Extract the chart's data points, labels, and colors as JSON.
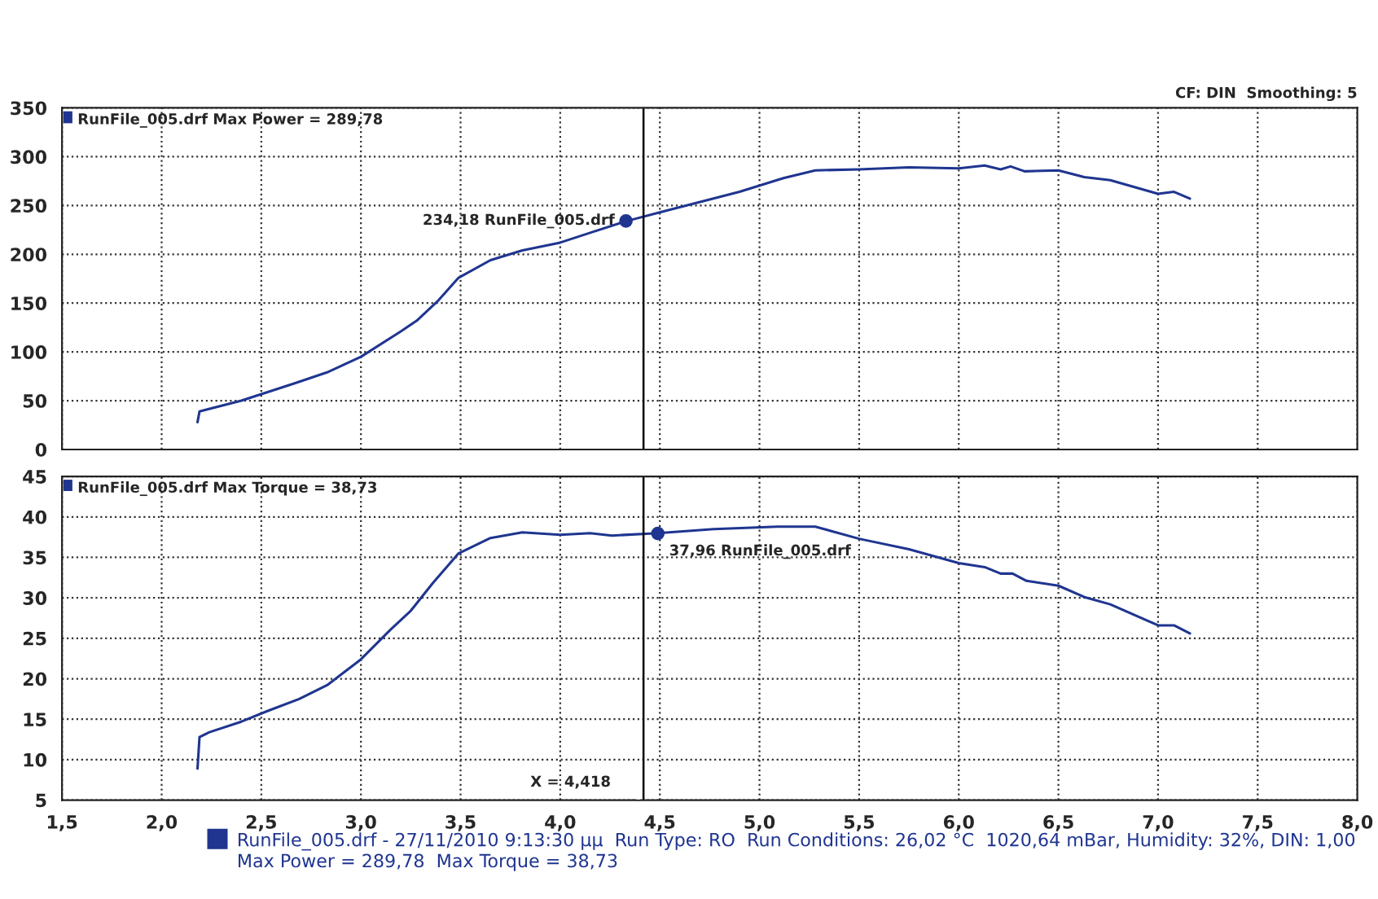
{
  "chart_data": [
    {
      "type": "line",
      "xlim": [
        1.5,
        8.0
      ],
      "xticks": [
        {
          "value": 1.5,
          "label": null
        },
        {
          "value": 2.0,
          "label": null
        },
        {
          "value": 2.5,
          "label": null
        },
        {
          "value": 3.0,
          "label": null
        },
        {
          "value": 3.5,
          "label": null
        },
        {
          "value": 4.0,
          "label": null
        },
        {
          "value": 4.5,
          "label": null
        },
        {
          "value": 5.0,
          "label": null
        },
        {
          "value": 5.5,
          "label": null
        },
        {
          "value": 6.0,
          "label": null
        },
        {
          "value": 6.5,
          "label": null
        },
        {
          "value": 7.0,
          "label": null
        },
        {
          "value": 7.5,
          "label": null
        },
        {
          "value": 8.0,
          "label": null
        }
      ],
      "ylim": [
        0,
        350
      ],
      "yticks": [
        0,
        50,
        100,
        150,
        200,
        250,
        300,
        350
      ],
      "tick_labels": "y",
      "grid": true,
      "series": [
        {
          "color": "#1f3590",
          "x": [
            2.18,
            2.19,
            2.4,
            2.67,
            2.83,
            3.0,
            3.2,
            3.28,
            3.39,
            3.49,
            3.65,
            3.81,
            4.0,
            4.15,
            4.33,
            4.37,
            4.5,
            4.69,
            4.9,
            5.12,
            5.28,
            5.5,
            5.75,
            6.0,
            6.13,
            6.21,
            6.26,
            6.33,
            6.5,
            6.63,
            6.76,
            7.0,
            7.08,
            7.16
          ],
          "values": [
            28,
            39,
            50,
            68,
            79,
            95,
            121,
            132,
            153,
            176,
            194,
            204,
            212,
            222,
            234,
            236,
            243,
            253,
            264,
            278,
            286,
            287,
            289,
            288,
            291,
            287,
            290,
            285,
            286,
            279,
            276,
            262,
            264,
            257
          ]
        }
      ],
      "ref_lines": [
        {
          "axis": "x",
          "value": 4.418,
          "color": "#000000"
        }
      ],
      "annotations": [
        "RunFile_005.drf Max Power = 289,78",
        "CF: DIN  Smoothing: 5",
        {
          "text": "234,18 RunFile_005.drf",
          "x": 4.33,
          "y": 234.18
        }
      ]
    },
    {
      "type": "line",
      "xlim": [
        1.5,
        8.0
      ],
      "xticks": [
        {
          "value": 1.5,
          "label": "1,5"
        },
        {
          "value": 2.0,
          "label": "2,0"
        },
        {
          "value": 2.5,
          "label": "2,5"
        },
        {
          "value": 3.0,
          "label": "3,0"
        },
        {
          "value": 3.5,
          "label": "3,5"
        },
        {
          "value": 4.0,
          "label": "4,0"
        },
        {
          "value": 4.5,
          "label": "4,5"
        },
        {
          "value": 5.0,
          "label": "5,0"
        },
        {
          "value": 5.5,
          "label": "5,5"
        },
        {
          "value": 6.0,
          "label": "6,0"
        },
        {
          "value": 6.5,
          "label": "6,5"
        },
        {
          "value": 7.0,
          "label": "7,0"
        },
        {
          "value": 7.5,
          "label": "7,5"
        },
        {
          "value": 8.0,
          "label": "8,0"
        }
      ],
      "ylim": [
        5,
        45
      ],
      "yticks": [
        5,
        10,
        15,
        20,
        25,
        30,
        35,
        40,
        45
      ],
      "grid": true,
      "series": [
        {
          "color": "#1f3590",
          "x": [
            2.18,
            2.19,
            2.24,
            2.4,
            2.53,
            2.69,
            2.83,
            3.0,
            3.15,
            3.25,
            3.36,
            3.49,
            3.65,
            3.81,
            4.0,
            4.15,
            4.26,
            4.49,
            4.77,
            5.09,
            5.28,
            5.5,
            5.75,
            6.0,
            6.13,
            6.21,
            6.27,
            6.34,
            6.5,
            6.63,
            6.76,
            7.0,
            7.08,
            7.16
          ],
          "values": [
            8.9,
            12.8,
            13.4,
            14.7,
            16.0,
            17.5,
            19.2,
            22.4,
            26.1,
            28.4,
            31.8,
            35.5,
            37.4,
            38.1,
            37.8,
            38.0,
            37.7,
            38.0,
            38.5,
            38.8,
            38.8,
            37.3,
            36.0,
            34.3,
            33.8,
            33.0,
            33.0,
            32.1,
            31.5,
            30.1,
            29.2,
            26.6,
            26.6,
            25.6
          ]
        }
      ],
      "ref_lines": [
        {
          "axis": "x",
          "value": 4.418,
          "label": "X = 4,418",
          "color": "#000000"
        }
      ],
      "annotations": [
        "RunFile_005.drf Max Torque = 38,73",
        "RunFile_005.drf - 27/11/2010 9:13:30 μμ  Run Type: RO  Run Conditions: 26,02 °C  1020,64 mBar, Humidity: 32%, DIN: 1,00",
        "Max Power = 289,78  Max Torque = 38,73",
        {
          "text": "37,96 RunFile_005.drf",
          "x": 4.49,
          "y": 37.96
        }
      ]
    }
  ]
}
